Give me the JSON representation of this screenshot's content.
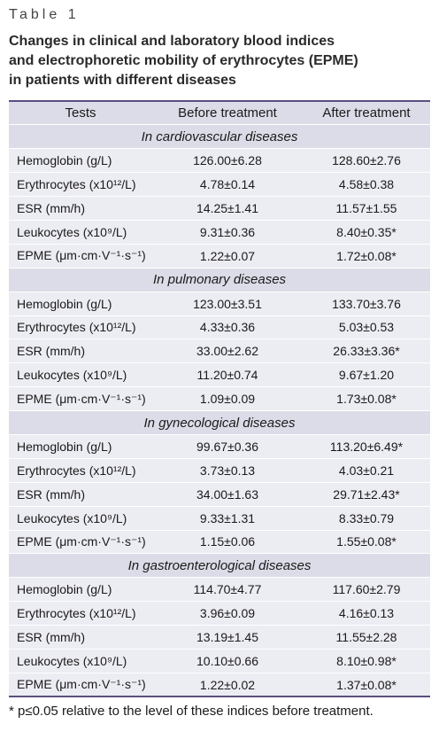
{
  "label": "Table 1",
  "caption": [
    "Changes in clinical and laboratory blood indices",
    "and electrophoretic mobility of erythrocytes (EPME)",
    "in patients with different diseases"
  ],
  "table": {
    "header": [
      "Tests",
      "Before treatment",
      "After treatment"
    ],
    "sections": [
      {
        "title": "In cardiovascular diseases",
        "rows": [
          [
            "Hemoglobin (g/L)",
            "126.00±6.28",
            "128.60±2.76"
          ],
          [
            "Erythrocytes (x10¹²/L)",
            "4.78±0.14",
            "4.58±0.38"
          ],
          [
            "ESR (mm/h)",
            "14.25±1.41",
            "11.57±1.55"
          ],
          [
            "Leukocytes (x10⁹/L)",
            "9.31±0.36",
            "8.40±0.35*"
          ],
          [
            "EPME (μm·cm·V⁻¹·s⁻¹)",
            "1.22±0.07",
            "1.72±0.08*"
          ]
        ]
      },
      {
        "title": "In pulmonary diseases",
        "rows": [
          [
            "Hemoglobin (g/L)",
            "123.00±3.51",
            "133.70±3.76"
          ],
          [
            "Erythrocytes (x10¹²/L)",
            "4.33±0.36",
            "5.03±0.53"
          ],
          [
            "ESR (mm/h)",
            "33.00±2.62",
            "26.33±3.36*"
          ],
          [
            "Leukocytes (x10⁹/L)",
            "11.20±0.74",
            "9.67±1.20"
          ],
          [
            "EPME (μm·cm·V⁻¹·s⁻¹)",
            "1.09±0.09",
            "1.73±0.08*"
          ]
        ]
      },
      {
        "title": "In gynecological diseases",
        "rows": [
          [
            "Hemoglobin (g/L)",
            "99.67±0.36",
            "113.20±6.49*"
          ],
          [
            "Erythrocytes (x10¹²/L)",
            "3.73±0.13",
            "4.03±0.21"
          ],
          [
            "ESR (mm/h)",
            "34.00±1.63",
            "29.71±2.43*"
          ],
          [
            "Leukocytes (x10⁹/L)",
            "9.33±1.31",
            "8.33±0.79"
          ],
          [
            "EPME (μm·cm·V⁻¹·s⁻¹)",
            "1.15±0.06",
            "1.55±0.08*"
          ]
        ]
      },
      {
        "title": "In gastroenterological diseases",
        "rows": [
          [
            "Hemoglobin (g/L)",
            "114.70±4.77",
            "117.60±2.79"
          ],
          [
            "Erythrocytes (x10¹²/L)",
            "3.96±0.09",
            "4.16±0.13"
          ],
          [
            "ESR (mm/h)",
            "13.19±1.45",
            "11.55±2.28"
          ],
          [
            "Leukocytes (x10⁹/L)",
            "10.10±0.66",
            "8.10±0.98*"
          ],
          [
            "EPME (μm·cm·V⁻¹·s⁻¹)",
            "1.22±0.02",
            "1.37±0.08*"
          ]
        ]
      }
    ]
  },
  "footnote": "* p≤0.05 relative to the level of these indices before treatment."
}
